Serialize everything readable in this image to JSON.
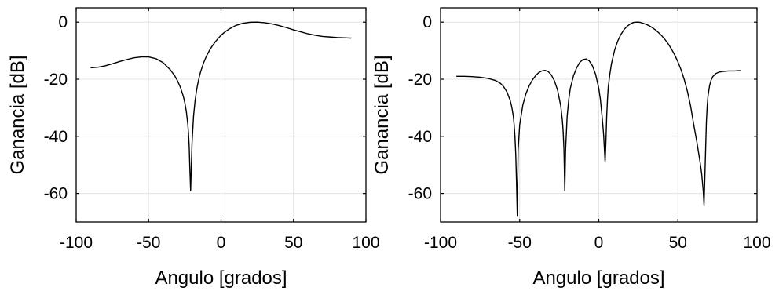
{
  "chart_data": [
    {
      "type": "line",
      "xlabel": "Angulo [grados]",
      "ylabel": "Ganancia [dB]",
      "xlim": [
        -100,
        100
      ],
      "ylim": [
        -70,
        5
      ],
      "xticks": [
        -100,
        -50,
        0,
        50,
        100
      ],
      "xtick_labels": [
        "-100",
        "-50",
        "0",
        "50",
        "100"
      ],
      "yticks": [
        0,
        -20,
        -40,
        -60
      ],
      "ytick_labels": [
        "0",
        "-20",
        "-40",
        "-60"
      ],
      "grid": true,
      "series": [
        {
          "color": "#000000",
          "x": [
            -90,
            -85,
            -80,
            -75,
            -70,
            -65,
            -60,
            -55,
            -50,
            -45,
            -40,
            -35,
            -32,
            -30,
            -28,
            -26,
            -25,
            -24,
            -23,
            -22.5,
            -22,
            -21.5,
            -21,
            -20.5,
            -20,
            -19,
            -18,
            -17,
            -16,
            -15,
            -14,
            -12,
            -10,
            -8,
            -6,
            -4,
            -2,
            0,
            2,
            5,
            10,
            15,
            20,
            25,
            30,
            35,
            40,
            45,
            50,
            55,
            60,
            65,
            70,
            75,
            80,
            85,
            90
          ],
          "y": [
            -16,
            -15.8,
            -15.3,
            -14.6,
            -13.8,
            -13.1,
            -12.5,
            -12.2,
            -12.2,
            -12.8,
            -14.2,
            -16.7,
            -18.8,
            -20.6,
            -22.9,
            -26.1,
            -28.3,
            -31.2,
            -35.5,
            -38.8,
            -43.5,
            -52,
            -59,
            -50,
            -42,
            -33,
            -27.8,
            -24.2,
            -21.4,
            -19.1,
            -17.2,
            -14.2,
            -11.8,
            -9.9,
            -8.3,
            -6.9,
            -5.7,
            -4.6,
            -3.7,
            -2.6,
            -1.2,
            -0.4,
            -0.05,
            0,
            -0.2,
            -0.6,
            -1.2,
            -1.9,
            -2.7,
            -3.4,
            -4.1,
            -4.6,
            -5,
            -5.2,
            -5.4,
            -5.5,
            -5.6
          ]
        }
      ]
    },
    {
      "type": "line",
      "xlabel": "Angulo [grados]",
      "ylabel": "Ganancia [dB]",
      "xlim": [
        -100,
        100
      ],
      "ylim": [
        -70,
        5
      ],
      "xticks": [
        -100,
        -50,
        0,
        50,
        100
      ],
      "xtick_labels": [
        "-100",
        "-50",
        "0",
        "50",
        "100"
      ],
      "yticks": [
        0,
        -20,
        -40,
        -60
      ],
      "ytick_labels": [
        "0",
        "-20",
        "-40",
        "-60"
      ],
      "grid": true,
      "series": [
        {
          "color": "#000000",
          "x": [
            -90,
            -85,
            -80,
            -75,
            -70,
            -65,
            -62,
            -60,
            -58,
            -56,
            -55,
            -54,
            -53.5,
            -53,
            -52.5,
            -52,
            -51.5,
            -51,
            -50,
            -48,
            -46,
            -44,
            -42,
            -40,
            -38,
            -36,
            -34,
            -32,
            -30,
            -28,
            -26,
            -24,
            -23,
            -22.5,
            -22,
            -21.5,
            -21,
            -20,
            -19,
            -18,
            -16,
            -14,
            -12,
            -10,
            -8,
            -6,
            -4,
            -2,
            0,
            1,
            2,
            3,
            3.5,
            4,
            4.5,
            5,
            5.5,
            6,
            7,
            8,
            10,
            12,
            14,
            16,
            18,
            20,
            22,
            24,
            26,
            28,
            30,
            32,
            34,
            36,
            38,
            40,
            42,
            44,
            46,
            48,
            50,
            52,
            54,
            56,
            58,
            60,
            62,
            64,
            65,
            66,
            66.5,
            67,
            67.5,
            68,
            68.5,
            69,
            70,
            71,
            72,
            74,
            76,
            78,
            80,
            82,
            84,
            86,
            88,
            90
          ],
          "y": [
            -19,
            -19,
            -19.1,
            -19.3,
            -19.7,
            -20.5,
            -21.5,
            -22.7,
            -24.5,
            -27.4,
            -29.7,
            -33,
            -36,
            -40,
            -46,
            -56,
            -68,
            -45,
            -36,
            -29,
            -25,
            -22.3,
            -20.3,
            -18.8,
            -17.7,
            -17.1,
            -16.9,
            -17.3,
            -18.5,
            -20.6,
            -23.9,
            -29.5,
            -34.5,
            -38.5,
            -45,
            -59,
            -45,
            -33,
            -27.2,
            -23.2,
            -18.8,
            -16,
            -14.1,
            -13.1,
            -12.9,
            -13.6,
            -15.3,
            -18.3,
            -23.2,
            -27,
            -32.5,
            -39,
            -44,
            -49,
            -42,
            -33,
            -27,
            -22.7,
            -18.2,
            -14.6,
            -9.8,
            -6.6,
            -4.3,
            -2.6,
            -1.4,
            -0.6,
            -0.1,
            0,
            -0.05,
            -0.4,
            -0.8,
            -1.3,
            -2,
            -2.8,
            -3.8,
            -4.9,
            -6.2,
            -7.7,
            -9.5,
            -11.5,
            -13.9,
            -16.7,
            -20.1,
            -24.2,
            -29.3,
            -35.9,
            -42,
            -49,
            -53,
            -59,
            -64,
            -55,
            -45,
            -35,
            -29.5,
            -26,
            -22.3,
            -20.3,
            -19.1,
            -18,
            -17.5,
            -17.3,
            -17.2,
            -17.1,
            -17.1,
            -17.1,
            -17,
            -17
          ]
        }
      ]
    }
  ]
}
